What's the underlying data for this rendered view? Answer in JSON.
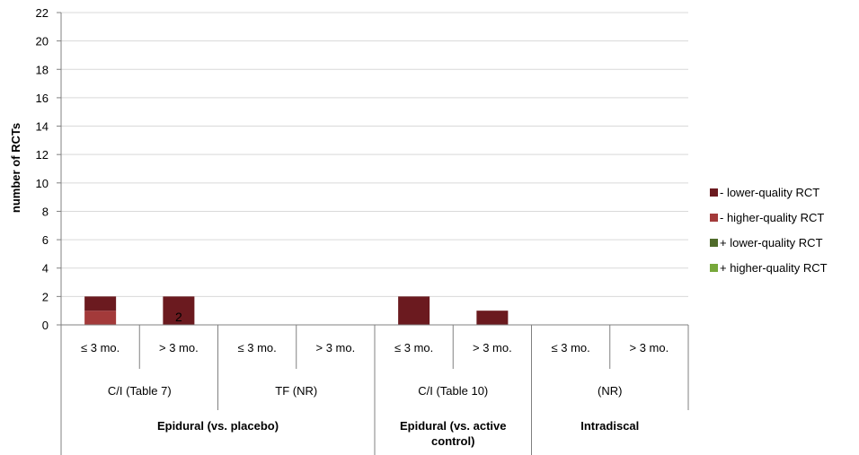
{
  "chart_data": {
    "type": "bar",
    "stacked": true,
    "ylabel": "number of RCTs",
    "ylim": [
      0,
      22
    ],
    "yticks": [
      "0",
      "2",
      "4",
      "6",
      "8",
      "10",
      "12",
      "14",
      "16",
      "18",
      "20",
      "22"
    ],
    "grid": true,
    "legend_position": "right",
    "categories": [
      "≤ 3 mo.",
      "> 3 mo.",
      "≤ 3 mo.",
      "> 3 mo.",
      "≤ 3 mo.",
      "> 3 mo.",
      "≤ 3 mo.",
      "> 3 mo."
    ],
    "group_level_2": [
      {
        "label": "C/I (Table 7)",
        "span": 2
      },
      {
        "label": "TF (NR)",
        "span": 2
      },
      {
        "label": "C/I (Table 10)",
        "span": 2
      },
      {
        "label": "(NR)",
        "span": 2
      }
    ],
    "group_level_3": [
      {
        "label": "Epidural (vs. placebo)",
        "span": 4
      },
      {
        "label": "Epidural (vs. active control)",
        "span": 2
      },
      {
        "label": "Intradiscal",
        "span": 2
      }
    ],
    "series": [
      {
        "name": "+ higher-quality RCT",
        "color": "#77a83a",
        "values": [
          0,
          0,
          0,
          0,
          0,
          0,
          0,
          0
        ]
      },
      {
        "name": "+ lower-quality RCT",
        "color": "#4f6b2a",
        "values": [
          0,
          0,
          0,
          0,
          0,
          0,
          0,
          0
        ]
      },
      {
        "name": "- higher-quality RCT",
        "color": "#a33a3a",
        "values": [
          1,
          0,
          0,
          0,
          0,
          0,
          0,
          0
        ]
      },
      {
        "name": "- lower-quality RCT",
        "color": "#6b1a1f",
        "values": [
          1,
          2,
          0,
          0,
          2,
          1,
          0,
          0
        ]
      }
    ],
    "legend_order": [
      "- lower-quality RCT",
      "- higher-quality RCT",
      "+ lower-quality RCT",
      "+ higher-quality RCT"
    ],
    "data_labels": [
      {
        "category_index": 1,
        "text": "2"
      }
    ]
  }
}
